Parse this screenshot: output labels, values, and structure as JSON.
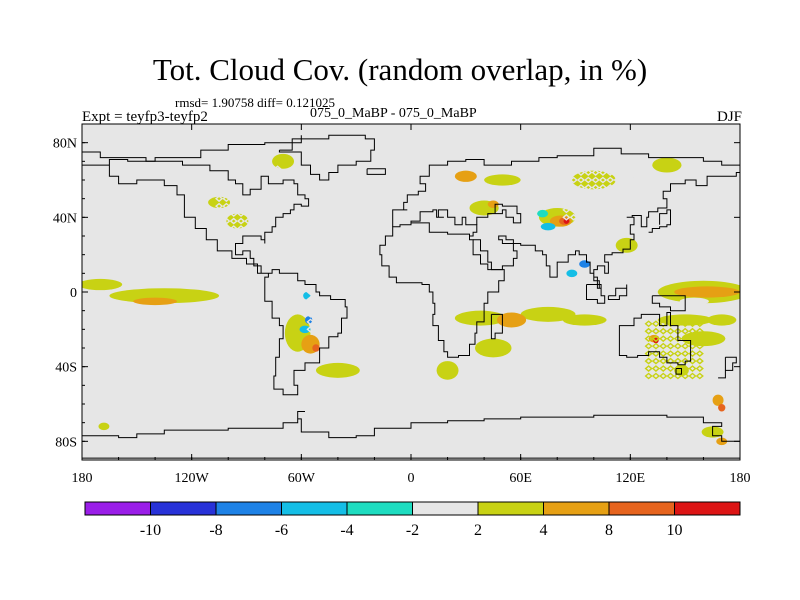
{
  "chart_data": {
    "type": "heatmap",
    "title": "Tot. Cloud Cov. (random overlap, in %)",
    "stats": {
      "label": "rmsd= 1.90758 diff= 0.121025",
      "rmsd": 1.90758,
      "diff": 0.121025
    },
    "experiment": "Expt = teyfp3-teyfp2",
    "experiment_names": "075_0_MaBP - 075_0_MaBP",
    "season": "DJF",
    "x_ticks": [
      {
        "value": -180,
        "label": "180"
      },
      {
        "value": -120,
        "label": "120W"
      },
      {
        "value": -60,
        "label": "60W"
      },
      {
        "value": 0,
        "label": "0"
      },
      {
        "value": 60,
        "label": "60E"
      },
      {
        "value": 120,
        "label": "120E"
      },
      {
        "value": 180,
        "label": "180"
      }
    ],
    "y_ticks": [
      {
        "value": 80,
        "label": "80N"
      },
      {
        "value": 40,
        "label": "40N"
      },
      {
        "value": 0,
        "label": "0"
      },
      {
        "value": -40,
        "label": "40S"
      },
      {
        "value": -80,
        "label": "80S"
      }
    ],
    "xlim": [
      -180,
      180
    ],
    "ylim": [
      -90,
      90
    ],
    "colorbar": {
      "levels": [
        -10,
        -8,
        -6,
        -4,
        -2,
        2,
        4,
        8,
        10
      ],
      "labels": [
        "-10",
        "-8",
        "-6",
        "-4",
        "-2",
        "2",
        "4",
        "8",
        "10"
      ],
      "colors": [
        "#9a1ee8",
        "#2832d8",
        "#1e82e6",
        "#14bee6",
        "#1edcc0",
        "#e6e6e6",
        "#c8d214",
        "#e6a014",
        "#e6641e",
        "#dc1414"
      ]
    },
    "blobs": [
      {
        "lon": -170,
        "lat": 4,
        "rlon": 12,
        "rlat": 3,
        "level": 2
      },
      {
        "lon": -135,
        "lat": -2,
        "rlon": 30,
        "rlat": 4,
        "level": 2
      },
      {
        "lon": -140,
        "lat": -5,
        "rlon": 12,
        "rlat": 2,
        "level": 4
      },
      {
        "lon": -120,
        "lat": -28,
        "rlon": 40,
        "rlat": 5,
        "level": -2
      },
      {
        "lon": -150,
        "lat": -18,
        "rlon": 15,
        "rlat": 3,
        "level": -2
      },
      {
        "lon": -110,
        "lat": 24,
        "rlon": 15,
        "rlat": 4,
        "level": -2
      },
      {
        "lon": -100,
        "lat": -40,
        "rlon": 18,
        "rlat": 3,
        "level": -2
      },
      {
        "lon": -40,
        "lat": 1,
        "rlon": 10,
        "rlat": 3,
        "level": -2
      },
      {
        "lon": 75,
        "lat": -12,
        "rlon": 15,
        "rlat": 4,
        "level": 2
      },
      {
        "lon": 95,
        "lat": -15,
        "rlon": 12,
        "rlat": 3,
        "level": 2
      },
      {
        "lon": 160,
        "lat": 0,
        "rlon": 25,
        "rlat": 6,
        "level": 2
      },
      {
        "lon": 162,
        "lat": 0,
        "rlon": 18,
        "rlat": 3,
        "level": 4
      },
      {
        "lon": 150,
        "lat": -15,
        "rlon": 15,
        "rlat": 3,
        "level": 2
      },
      {
        "lon": 160,
        "lat": -25,
        "rlon": 12,
        "rlat": 4,
        "level": 2
      },
      {
        "lon": 170,
        "lat": -15,
        "rlon": 8,
        "rlat": 3,
        "level": 2
      },
      {
        "lon": 120,
        "lat": 17,
        "rlon": 10,
        "rlat": 3,
        "level": -2
      },
      {
        "lon": 135,
        "lat": 10,
        "rlon": 8,
        "rlat": 2,
        "level": -2
      },
      {
        "lon": 148,
        "lat": 33,
        "rlon": 10,
        "rlat": 3,
        "level": -2
      },
      {
        "lon": 38,
        "lat": -14,
        "rlon": 14,
        "rlat": 4,
        "level": 2
      },
      {
        "lon": 55,
        "lat": -15,
        "rlon": 8,
        "rlat": 4,
        "level": 4
      },
      {
        "lon": 45,
        "lat": -30,
        "rlon": 10,
        "rlat": 5,
        "level": 2
      },
      {
        "lon": -55,
        "lat": -8,
        "rlon": 8,
        "rlat": 12,
        "level": -2
      },
      {
        "lon": -62,
        "lat": -22,
        "rlon": 7,
        "rlat": 10,
        "level": 2
      },
      {
        "lon": -55,
        "lat": -28,
        "rlon": 5,
        "rlat": 5,
        "level": 4
      },
      {
        "lon": -52,
        "lat": -30,
        "rlon": 2,
        "rlat": 2,
        "level": 8
      },
      {
        "lon": -57,
        "lat": -2,
        "rlon": 2,
        "rlat": 2,
        "level": -6
      },
      {
        "lon": -56,
        "lat": -15,
        "rlon": 2,
        "rlat": 2,
        "level": -8
      },
      {
        "lon": -58,
        "lat": -20,
        "rlon": 3,
        "rlat": 2,
        "level": -6
      },
      {
        "lon": -38,
        "lat": -20,
        "rlon": 8,
        "rlat": 6,
        "level": -2
      },
      {
        "lon": -30,
        "lat": -8,
        "rlon": 6,
        "rlat": 5,
        "level": -2
      },
      {
        "lon": -15,
        "lat": -48,
        "rlon": 10,
        "rlat": 3,
        "level": -2
      },
      {
        "lon": -40,
        "lat": -42,
        "rlon": 12,
        "rlat": 4,
        "level": 2
      },
      {
        "lon": 20,
        "lat": -42,
        "rlon": 6,
        "rlat": 5,
        "level": 2
      },
      {
        "lon": 20,
        "lat": -8,
        "rlon": 10,
        "rlat": 5,
        "level": -2
      },
      {
        "lon": 5,
        "lat": 12,
        "rlon": 6,
        "rlat": 3,
        "level": -2
      },
      {
        "lon": 40,
        "lat": 45,
        "rlon": 8,
        "rlat": 4,
        "level": 2
      },
      {
        "lon": 45,
        "lat": 47,
        "rlon": 3,
        "rlat": 2,
        "level": 4
      },
      {
        "lon": 50,
        "lat": 60,
        "rlon": 10,
        "rlat": 3,
        "level": 2
      },
      {
        "lon": 80,
        "lat": 40,
        "rlon": 10,
        "rlat": 5,
        "level": 2
      },
      {
        "lon": 82,
        "lat": 38,
        "rlon": 6,
        "rlat": 3,
        "level": 4
      },
      {
        "lon": 84,
        "lat": 38,
        "rlon": 3,
        "rlat": 2,
        "level": 8
      },
      {
        "lon": 85,
        "lat": 38,
        "rlon": 1.5,
        "rlat": 1.5,
        "level": 10
      },
      {
        "lon": 75,
        "lat": 35,
        "rlon": 4,
        "rlat": 2,
        "level": -6
      },
      {
        "lon": 72,
        "lat": 42,
        "rlon": 3,
        "rlat": 2,
        "level": -4
      },
      {
        "lon": 100,
        "lat": 40,
        "rlon": 8,
        "rlat": 5,
        "level": -2
      },
      {
        "lon": 118,
        "lat": 40,
        "rlon": 8,
        "rlat": 4,
        "level": -2
      },
      {
        "lon": 100,
        "lat": 60,
        "rlon": 12,
        "rlat": 5,
        "level": 2
      },
      {
        "lon": 130,
        "lat": 60,
        "rlon": 12,
        "rlat": 5,
        "level": -2
      },
      {
        "lon": 140,
        "lat": 68,
        "rlon": 8,
        "rlat": 4,
        "level": 2
      },
      {
        "lon": 118,
        "lat": 25,
        "rlon": 6,
        "rlat": 4,
        "level": 2
      },
      {
        "lon": 95,
        "lat": 15,
        "rlon": 3,
        "rlat": 2,
        "level": -8
      },
      {
        "lon": 88,
        "lat": 10,
        "rlon": 3,
        "rlat": 2,
        "level": -6
      },
      {
        "lon": 135,
        "lat": -25,
        "rlon": 5,
        "rlat": 4,
        "level": -2
      },
      {
        "lon": 133,
        "lat": -25,
        "rlon": 3,
        "rlat": 2,
        "level": 4
      },
      {
        "lon": 134,
        "lat": -26,
        "rlon": 1.5,
        "rlat": 1.5,
        "level": 10
      },
      {
        "lon": 125,
        "lat": -40,
        "rlon": 10,
        "rlat": 6,
        "level": -2
      },
      {
        "lon": 150,
        "lat": -45,
        "rlon": 8,
        "rlat": 5,
        "level": -2
      },
      {
        "lon": 148,
        "lat": -42,
        "rlon": 4,
        "rlat": 3,
        "level": 2
      },
      {
        "lon": 165,
        "lat": -55,
        "rlon": 6,
        "rlat": 5,
        "level": -2
      },
      {
        "lon": 168,
        "lat": -58,
        "rlon": 3,
        "rlat": 3,
        "level": 4
      },
      {
        "lon": 170,
        "lat": -62,
        "rlon": 2,
        "rlat": 2,
        "level": 8
      },
      {
        "lon": 165,
        "lat": -75,
        "rlon": 6,
        "rlat": 3,
        "level": 2
      },
      {
        "lon": 170,
        "lat": -80,
        "rlon": 3,
        "rlat": 2,
        "level": 4
      },
      {
        "lon": -175,
        "lat": -70,
        "rlon": 6,
        "rlat": 3,
        "level": -2
      },
      {
        "lon": -168,
        "lat": -72,
        "rlon": 3,
        "rlat": 2,
        "level": 2
      },
      {
        "lon": -110,
        "lat": -85,
        "rlon": 20,
        "rlat": 2,
        "level": -2
      },
      {
        "lon": -55,
        "lat": -78,
        "rlon": 10,
        "rlat": 3,
        "level": -2
      },
      {
        "lon": -140,
        "lat": 62,
        "rlon": 8,
        "rlat": 4,
        "level": -2
      },
      {
        "lon": -90,
        "lat": 65,
        "rlon": 8,
        "rlat": 4,
        "level": -2
      },
      {
        "lon": -70,
        "lat": 70,
        "rlon": 6,
        "rlat": 4,
        "level": 2
      },
      {
        "lon": -30,
        "lat": 58,
        "rlon": 8,
        "rlat": 4,
        "level": -2
      },
      {
        "lon": -15,
        "lat": 62,
        "rlon": 6,
        "rlat": 3,
        "level": -2
      },
      {
        "lon": -95,
        "lat": 38,
        "rlon": 6,
        "rlat": 4,
        "level": 2
      },
      {
        "lon": -105,
        "lat": 48,
        "rlon": 6,
        "rlat": 3,
        "level": 2
      },
      {
        "lon": -10,
        "lat": 45,
        "rlon": 8,
        "rlat": 3,
        "level": -2
      },
      {
        "lon": 30,
        "lat": 62,
        "rlon": 6,
        "rlat": 3,
        "level": 4
      },
      {
        "lon": 10,
        "lat": 42,
        "rlon": 10,
        "rlat": 3,
        "level": -2
      },
      {
        "lon": 20,
        "lat": 48,
        "rlon": 6,
        "rlat": 3,
        "level": -2
      },
      {
        "lon": 155,
        "lat": -5,
        "rlon": 8,
        "rlat": 2,
        "level": -2
      }
    ],
    "hatch_regions": [
      {
        "lon0": -55,
        "lon1": -35,
        "lat0": -20,
        "lat1": 2,
        "level": -2
      },
      {
        "lon0": 85,
        "lon1": 130,
        "lat0": 40,
        "lat1": 72,
        "level": -2
      },
      {
        "lon0": -105,
        "lon1": -70,
        "lat0": 30,
        "lat1": 68,
        "level": -2
      },
      {
        "lon0": 130,
        "lon1": 158,
        "lat0": -45,
        "lat1": -15,
        "level": 2
      }
    ]
  }
}
